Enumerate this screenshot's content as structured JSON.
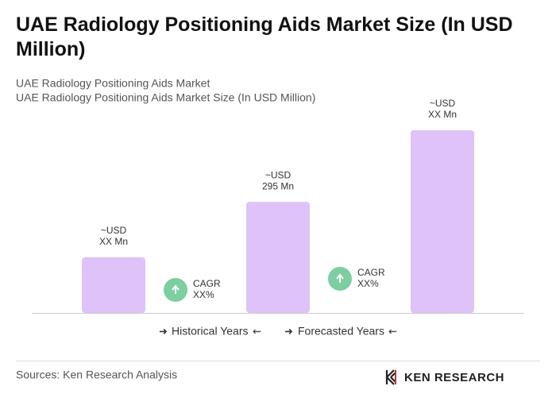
{
  "chart_data": {
    "type": "bar",
    "title": "UAE Radiology Positioning Aids Market Size (In USD Million)",
    "subtitle": [
      "UAE Radiology Positioning Aids Market",
      "UAE Radiology Positioning Aids Market Size (In USD Million)"
    ],
    "categories": [
      null,
      null,
      null
    ],
    "values": [
      147.5,
      295,
      485
    ],
    "value_labels": [
      [
        "~USD",
        "XX Mn"
      ],
      [
        "~USD",
        "295 Mn"
      ],
      [
        "~USD",
        "XX Mn"
      ]
    ],
    "color": "#dfc2f8",
    "annotations": [
      [
        "CAGR",
        "XX%"
      ],
      [
        "CAGR",
        "XX%"
      ]
    ],
    "annotation_color": "#7dcea0",
    "legend": [
      "Historical Years",
      "Forecasted Years"
    ],
    "source": "Sources: Ken Research Analysis",
    "brand": "KEN RESEARCH"
  }
}
